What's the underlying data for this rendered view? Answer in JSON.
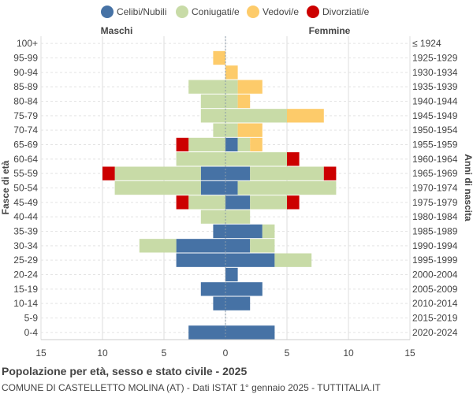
{
  "chart_data": {
    "type": "bar",
    "orientation": "horizontal-pyramid",
    "title": "Popolazione per età, sesso e stato civile - 2025",
    "subtitle": "COMUNE DI CASTELLETTO MOLINA (AT) - Dati ISTAT 1° gennaio 2025 - TUTTITALIA.IT",
    "left_label": "Maschi",
    "right_label": "Femmine",
    "ylabel_left": "Fasce di età",
    "ylabel_right": "Anni di nascita",
    "xlim": [
      -15,
      15
    ],
    "xticks": [
      "15",
      "10",
      "5",
      "0",
      "5",
      "10",
      "15"
    ],
    "legend_position": "top",
    "series_names": [
      "Celibi/Nubili",
      "Coniugati/e",
      "Vedovi/e",
      "Divorziati/e"
    ],
    "colors": [
      "#4672a5",
      "#c8dba7",
      "#fdcb6a",
      "#cc0000"
    ],
    "age_groups": [
      "100+",
      "95-99",
      "90-94",
      "85-89",
      "80-84",
      "75-79",
      "70-74",
      "65-69",
      "60-64",
      "55-59",
      "50-54",
      "45-49",
      "40-44",
      "35-39",
      "30-34",
      "25-29",
      "20-24",
      "15-19",
      "10-14",
      "5-9",
      "0-4"
    ],
    "birth_years": [
      "≤ 1924",
      "1925-1929",
      "1930-1934",
      "1935-1939",
      "1940-1944",
      "1945-1949",
      "1950-1954",
      "1955-1959",
      "1960-1964",
      "1965-1969",
      "1970-1974",
      "1975-1979",
      "1980-1984",
      "1985-1989",
      "1990-1994",
      "1995-1999",
      "2000-2004",
      "2005-2009",
      "2010-2014",
      "2015-2019",
      "2020-2024"
    ],
    "males": {
      "Celibi/Nubili": [
        0,
        0,
        0,
        0,
        0,
        0,
        0,
        0,
        0,
        2,
        2,
        0,
        0,
        1,
        4,
        4,
        0,
        2,
        1,
        0,
        3
      ],
      "Coniugati/e": [
        0,
        0,
        0,
        3,
        2,
        2,
        1,
        3,
        4,
        7,
        7,
        3,
        2,
        0,
        3,
        0,
        0,
        0,
        0,
        0,
        0
      ],
      "Vedovi/e": [
        0,
        1,
        0,
        0,
        0,
        0,
        0,
        0,
        0,
        0,
        0,
        0,
        0,
        0,
        0,
        0,
        0,
        0,
        0,
        0,
        0
      ],
      "Divorziati/e": [
        0,
        0,
        0,
        0,
        0,
        0,
        0,
        1,
        0,
        1,
        0,
        1,
        0,
        0,
        0,
        0,
        0,
        0,
        0,
        0,
        0
      ]
    },
    "females": {
      "Celibi/Nubili": [
        0,
        0,
        0,
        0,
        0,
        0,
        0,
        1,
        0,
        2,
        1,
        2,
        0,
        3,
        2,
        4,
        1,
        3,
        2,
        0,
        4
      ],
      "Coniugati/e": [
        0,
        0,
        0,
        1,
        1,
        5,
        1,
        1,
        5,
        6,
        8,
        3,
        2,
        1,
        2,
        3,
        0,
        0,
        0,
        0,
        0
      ],
      "Vedovi/e": [
        0,
        0,
        1,
        2,
        1,
        3,
        2,
        1,
        0,
        0,
        0,
        0,
        0,
        0,
        0,
        0,
        0,
        0,
        0,
        0,
        0
      ],
      "Divorziati/e": [
        0,
        0,
        0,
        0,
        0,
        0,
        0,
        0,
        1,
        1,
        0,
        1,
        0,
        0,
        0,
        0,
        0,
        0,
        0,
        0,
        0
      ]
    }
  }
}
